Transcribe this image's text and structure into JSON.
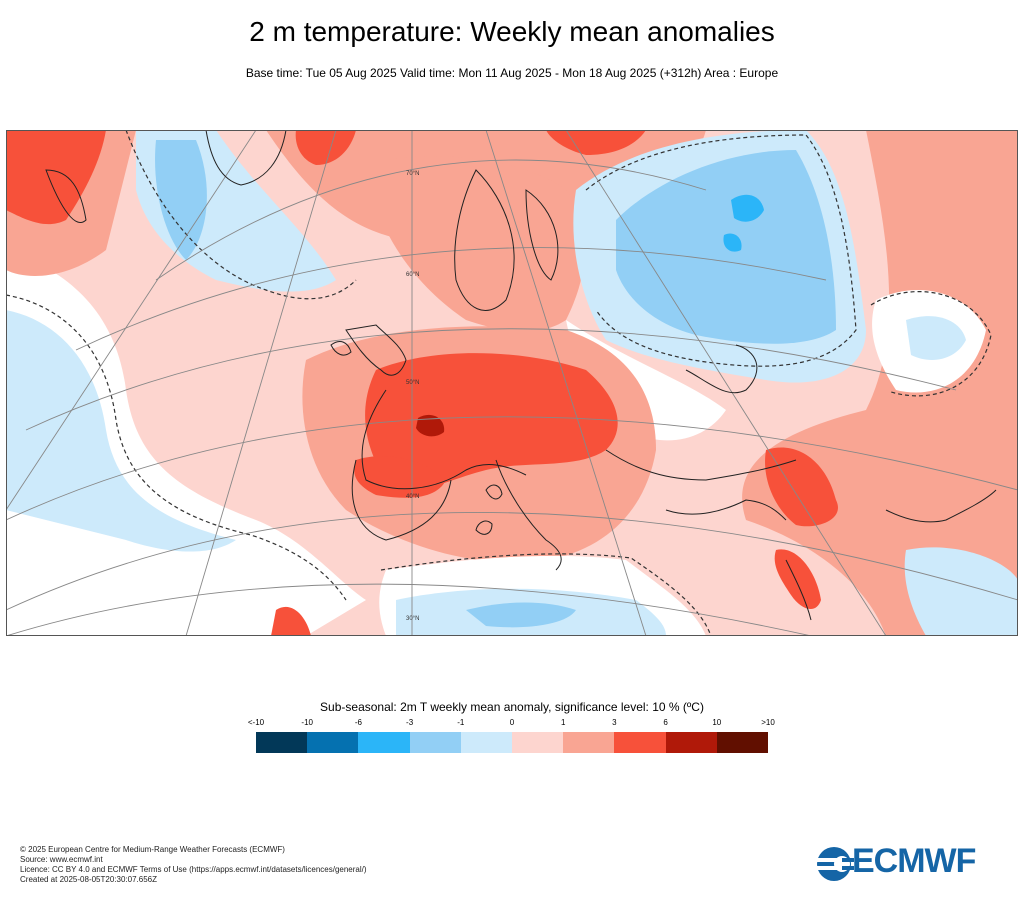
{
  "header": {
    "title": "2 m temperature: Weekly mean anomalies",
    "subtitle": "Base time: Tue 05 Aug 2025 Valid time: Mon 11 Aug 2025 - Mon 18 Aug 2025 (+312h) Area : Europe"
  },
  "map": {
    "area": "Europe",
    "latitude_labels": [
      "70°N",
      "60°N",
      "50°N",
      "40°N",
      "30°N"
    ],
    "colors": {
      "land_outline": "#222222",
      "graticule": "#888888",
      "significance_contour": "#333333"
    }
  },
  "legend": {
    "title": "Sub-seasonal: 2m T weekly mean anomaly, significance level: 10 % (ºC)",
    "ticks": [
      "<-10",
      "-10",
      "-6",
      "-3",
      "-1",
      "0",
      "1",
      "3",
      "6",
      "10",
      ">10"
    ],
    "colors": [
      "#023858",
      "#0571b0",
      "#2bb5f8",
      "#92cff5",
      "#cdeafb",
      "#fdd5cf",
      "#f9a593",
      "#f7513a",
      "#b01909",
      "#610f00"
    ]
  },
  "footer": {
    "lines": [
      "© 2025 European Centre for Medium-Range Weather Forecasts (ECMWF)",
      "Source: www.ecmwf.int",
      "Licence: CC BY 4.0 and ECMWF Terms of Use (https://apps.ecmwf.int/datasets/licences/general/)",
      "Created at 2025-08-05T20:30:07.656Z"
    ]
  },
  "logo": {
    "text": "ECMWF",
    "color": "#1565a6"
  }
}
